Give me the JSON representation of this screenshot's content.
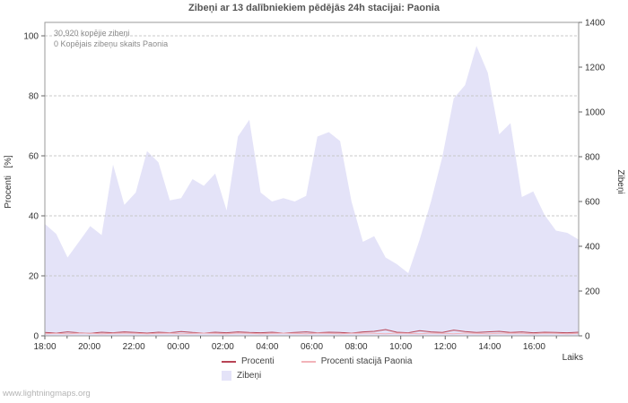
{
  "page": {
    "footer": "www.lightningmaps.org"
  },
  "chart_data": {
    "type": "area",
    "title": "Zibeņi ar 13 dalībniekiem pēdējās 24h stacijai: Paonia",
    "xlabel": "Laiks",
    "ylabel_left": "Procenti   [%]",
    "ylabel_right": "Zibeņi",
    "annotations": [
      "30,920 kopējie zibeņi",
      "0 Kopējais zibeņu skaits Paonia"
    ],
    "grid": "dashed-horizontal",
    "x_tick_labels": [
      "18:00",
      "20:00",
      "22:00",
      "00:00",
      "02:00",
      "04:00",
      "06:00",
      "08:00",
      "10:00",
      "12:00",
      "14:00",
      "16:00"
    ],
    "left_axis": {
      "label": "Procenti [%]",
      "ticks": [
        0,
        20,
        40,
        60,
        80,
        100
      ],
      "range": [
        0,
        100
      ]
    },
    "right_axis": {
      "label": "Zibeņi",
      "ticks": [
        0,
        200,
        400,
        600,
        800,
        1000,
        1200,
        1400
      ],
      "range": [
        0,
        1400
      ]
    },
    "colors": {
      "area_fill": "#e4e3f8",
      "procenti_line": "#b84455",
      "paonia_line": "#f2b3b9",
      "grid": "#c9c9c9",
      "frame": "#9a9a9a",
      "tick_text": "#333333"
    },
    "series": [
      {
        "name": "Zibeņi",
        "type": "area",
        "axis": "right",
        "color": "#e4e3f8",
        "values": [
          500,
          455,
          350,
          420,
          490,
          450,
          765,
          585,
          640,
          825,
          775,
          605,
          615,
          700,
          670,
          725,
          560,
          890,
          965,
          640,
          600,
          615,
          600,
          625,
          890,
          910,
          870,
          600,
          420,
          445,
          350,
          320,
          280,
          430,
          600,
          800,
          1060,
          1120,
          1295,
          1175,
          900,
          950,
          620,
          645,
          540,
          470,
          460,
          430
        ]
      },
      {
        "name": "Procenti",
        "type": "line",
        "axis": "left",
        "color": "#b84455",
        "values": [
          1.1,
          0.9,
          1.3,
          1.0,
          0.8,
          1.2,
          1.0,
          1.3,
          1.1,
          0.9,
          1.2,
          1.0,
          1.4,
          1.1,
          0.9,
          1.2,
          1.0,
          1.3,
          1.1,
          1.0,
          1.2,
          0.9,
          1.1,
          1.3,
          1.0,
          1.2,
          1.1,
          0.9,
          1.3,
          1.5,
          2.1,
          1.2,
          1.0,
          1.7,
          1.3,
          1.1,
          1.9,
          1.4,
          1.1,
          1.3,
          1.5,
          1.1,
          1.3,
          1.0,
          1.2,
          1.1,
          1.0,
          1.2
        ]
      },
      {
        "name": "Procenti stacijā Paonia",
        "type": "line",
        "axis": "left",
        "color": "#f2b3b9",
        "values": [
          0.7,
          0.8,
          0.7,
          0.9,
          0.8,
          0.7,
          0.8,
          0.9,
          0.8,
          0.7,
          0.8,
          0.9,
          0.7,
          0.8,
          0.9,
          0.8,
          0.7,
          0.9,
          0.8,
          0.7,
          0.8,
          0.9,
          0.8,
          0.7,
          0.9,
          0.8,
          0.7,
          0.8,
          0.9,
          0.8,
          0.7,
          0.9,
          0.8,
          0.7,
          0.9,
          0.8,
          0.7,
          0.9,
          0.8,
          0.7,
          0.8,
          0.9,
          0.8,
          0.7,
          0.9,
          0.8,
          0.7,
          0.8
        ]
      }
    ],
    "legend": [
      {
        "label": "Procenti",
        "color": "#b84455",
        "marker": "line"
      },
      {
        "label": "Procenti stacijā Paonia",
        "color": "#f2b3b9",
        "marker": "line"
      },
      {
        "label": "Zibeņi",
        "color": "#e4e3f8",
        "marker": "box"
      }
    ]
  }
}
